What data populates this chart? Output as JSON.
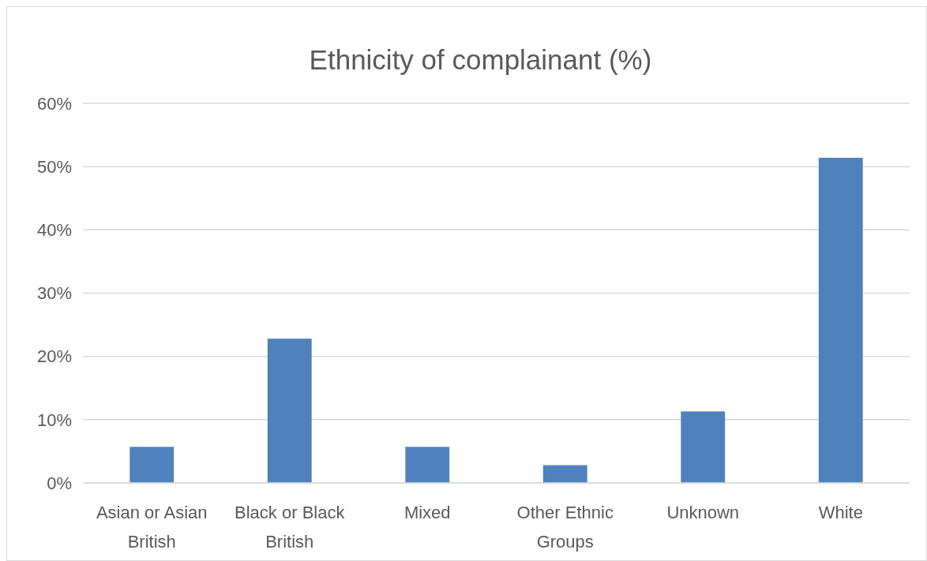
{
  "chart_data": {
    "type": "bar",
    "title": "Ethnicity of complainant (%)",
    "categories": [
      "Asian or Asian British",
      "Black or Black British",
      "Mixed",
      "Other Ethnic Groups",
      "Unknown",
      "White"
    ],
    "values": [
      5.7,
      22.8,
      5.7,
      2.8,
      11.3,
      51.4
    ],
    "color": "#4f81bd",
    "ylim": [
      0,
      60
    ],
    "yticks": [
      {
        "value": 0,
        "label": "0%"
      },
      {
        "value": 10,
        "label": "10%"
      },
      {
        "value": 20,
        "label": "20%"
      },
      {
        "value": 30,
        "label": "30%"
      },
      {
        "value": 40,
        "label": "40%"
      },
      {
        "value": 50,
        "label": "50%"
      },
      {
        "value": 60,
        "label": "60%"
      }
    ],
    "grid": "y"
  }
}
